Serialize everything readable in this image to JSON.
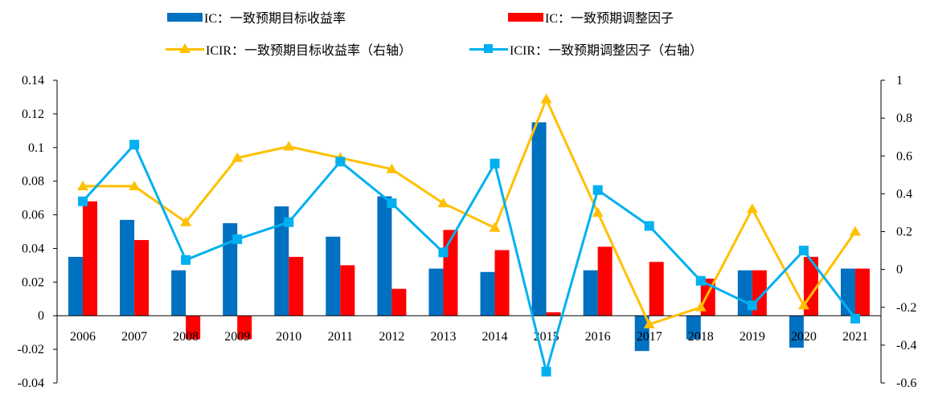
{
  "legend": {
    "ic_target": "IC：一致预期目标收益率",
    "ic_adjust": "IC：一致预期调整因子",
    "icir_target": "ICIR：一致预期目标收益率（右轴）",
    "icir_adjust": "ICIR：一致预期调整因子（右轴）"
  },
  "colors": {
    "ic_target": "#0070C0",
    "ic_adjust": "#FF0000",
    "icir_target": "#FFC000",
    "icir_adjust": "#00B0F0"
  },
  "chart_data": {
    "type": "bar",
    "categories": [
      "2006",
      "2007",
      "2008",
      "2009",
      "2010",
      "2011",
      "2012",
      "2013",
      "2014",
      "2015",
      "2016",
      "2017",
      "2018",
      "2019",
      "2020",
      "2021"
    ],
    "series": [
      {
        "name": "IC：一致预期目标收益率",
        "kind": "bar",
        "axis": "left",
        "values": [
          0.035,
          0.057,
          0.027,
          0.055,
          0.065,
          0.047,
          0.071,
          0.028,
          0.026,
          0.115,
          0.027,
          -0.021,
          -0.014,
          0.027,
          -0.019,
          0.028
        ]
      },
      {
        "name": "IC：一致预期调整因子",
        "kind": "bar",
        "axis": "left",
        "values": [
          0.068,
          0.045,
          -0.014,
          -0.014,
          0.035,
          0.03,
          0.016,
          0.051,
          0.039,
          0.002,
          0.041,
          0.032,
          0.022,
          0.027,
          0.035,
          0.028
        ]
      },
      {
        "name": "ICIR：一致预期目标收益率（右轴）",
        "kind": "line",
        "marker": "triangle",
        "axis": "right",
        "values": [
          0.44,
          0.44,
          0.25,
          0.59,
          0.65,
          0.59,
          0.53,
          0.35,
          0.22,
          0.9,
          0.3,
          -0.29,
          -0.2,
          0.32,
          -0.19,
          0.2
        ]
      },
      {
        "name": "ICIR：一致预期调整因子（右轴）",
        "kind": "line",
        "marker": "square",
        "axis": "right",
        "values": [
          0.36,
          0.66,
          0.05,
          0.16,
          0.25,
          0.57,
          0.35,
          0.09,
          0.56,
          -0.54,
          0.42,
          0.23,
          -0.06,
          -0.19,
          0.1,
          -0.26
        ]
      }
    ],
    "ylim": [
      -0.04,
      0.14
    ],
    "yticks": [
      "0.14",
      "0.12",
      "0.1",
      "0.08",
      "0.06",
      "0.04",
      "0.02",
      "0",
      "-0.02",
      "-0.04"
    ],
    "y2lim": [
      -0.6,
      1.0
    ],
    "y2ticks": [
      "1",
      "0.8",
      "0.6",
      "0.4",
      "0.2",
      "0",
      "-0.2",
      "-0.4",
      "-0.6"
    ],
    "title": "",
    "xlabel": "",
    "ylabel": "",
    "legend_position": "top"
  }
}
